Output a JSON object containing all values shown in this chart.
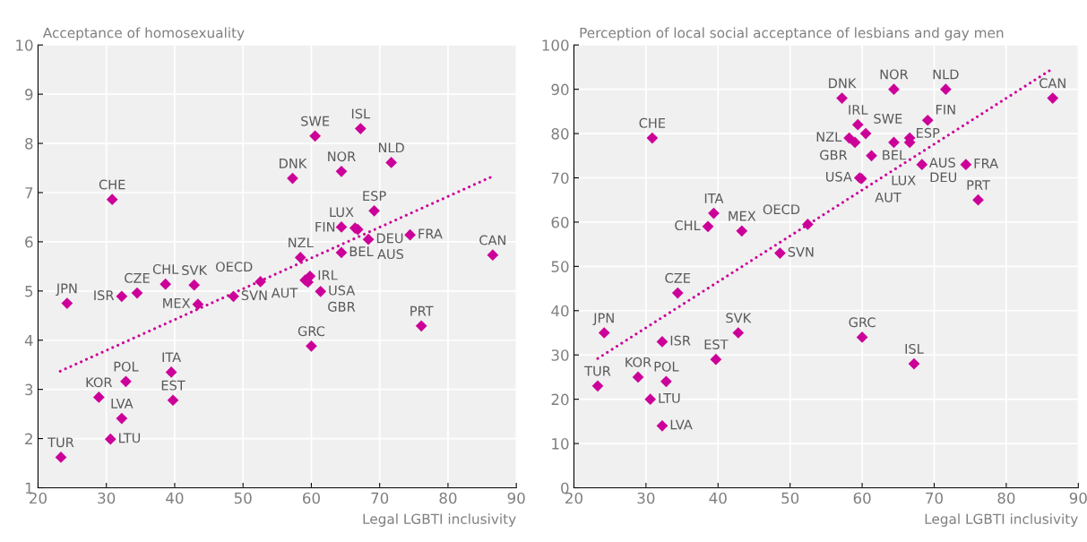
{
  "chart_data": [
    {
      "type": "scatter",
      "ylabel": "Acceptance of homosexuality",
      "xlabel": "Legal LGBTI inclusivity",
      "xlim": [
        20,
        90
      ],
      "xticks": [
        20,
        30,
        40,
        50,
        60,
        70,
        80,
        90
      ],
      "ylim": [
        1,
        10
      ],
      "yticks": [
        1,
        2,
        3,
        4,
        5,
        6,
        7,
        8,
        9,
        10
      ],
      "grid": true,
      "series": [
        {
          "color": "#cc0099",
          "marker": "diamond",
          "x": [
            60.55,
            67.2,
            71.7,
            57.25,
            64.4,
            30.85,
            69.2,
            64.4,
            66.4,
            66.8,
            68.35,
            74.45,
            86.55,
            58.4,
            64.4,
            59.1,
            59.8,
            59.5,
            61.35,
            48.6,
            52.55,
            43.4,
            42.85,
            38.65,
            34.5,
            32.25,
            24.25,
            39.5,
            39.75,
            32.85,
            28.9,
            32.25,
            30.6,
            23.35,
            60.0,
            76.1
          ],
          "values": [
            8.15,
            8.3,
            7.61,
            7.29,
            7.43,
            6.86,
            6.63,
            6.3,
            6.28,
            6.25,
            6.05,
            6.14,
            5.73,
            5.68,
            5.78,
            5.22,
            5.3,
            5.18,
            4.99,
            4.89,
            5.19,
            4.73,
            5.12,
            5.14,
            4.96,
            4.89,
            4.75,
            3.35,
            2.78,
            3.16,
            2.84,
            2.41,
            1.99,
            1.62,
            3.88,
            4.29
          ]
        },
        {
          "type": "line",
          "color": "#cc0099",
          "line_style": "dotted",
          "x": [
            23.25,
            86.2
          ],
          "values": [
            3.37,
            7.31
          ]
        }
      ],
      "annotations": [
        {
          "text": "SWE",
          "x": 60.55,
          "y": 8.15
        },
        {
          "text": "ISL",
          "x": 67.2,
          "y": 8.3
        },
        {
          "text": "NLD",
          "x": 71.7,
          "y": 7.61
        },
        {
          "text": "DNK",
          "x": 57.25,
          "y": 7.29
        },
        {
          "text": "NOR",
          "x": 64.4,
          "y": 7.43
        },
        {
          "text": "CHE",
          "x": 30.85,
          "y": 6.86
        },
        {
          "text": "ESP",
          "x": 69.2,
          "y": 6.63
        },
        {
          "text": "LUX",
          "x": 64.4,
          "y": 6.3
        },
        {
          "text": "FIN",
          "x": 66.4,
          "y": 6.28
        },
        {
          "text": "AUS",
          "x": 66.8,
          "y": 6.25
        },
        {
          "text": "DEU",
          "x": 68.35,
          "y": 6.05
        },
        {
          "text": "FRA",
          "x": 74.45,
          "y": 6.14
        },
        {
          "text": "CAN",
          "x": 86.55,
          "y": 5.73
        },
        {
          "text": "NZL",
          "x": 58.4,
          "y": 5.68
        },
        {
          "text": "BEL",
          "x": 64.4,
          "y": 5.78
        },
        {
          "text": "AUT",
          "x": 59.1,
          "y": 5.22
        },
        {
          "text": "IRL",
          "x": 59.8,
          "y": 5.3
        },
        {
          "text": "GBR",
          "x": 59.5,
          "y": 5.18
        },
        {
          "text": "USA",
          "x": 61.35,
          "y": 4.99
        },
        {
          "text": "SVN",
          "x": 48.6,
          "y": 4.89
        },
        {
          "text": "OECD",
          "x": 52.55,
          "y": 5.19
        },
        {
          "text": "MEX",
          "x": 43.4,
          "y": 4.73
        },
        {
          "text": "SVK",
          "x": 42.85,
          "y": 5.12
        },
        {
          "text": "CHL",
          "x": 38.65,
          "y": 5.14
        },
        {
          "text": "CZE",
          "x": 34.5,
          "y": 4.96
        },
        {
          "text": "ISR",
          "x": 32.25,
          "y": 4.89
        },
        {
          "text": "JPN",
          "x": 24.25,
          "y": 4.75
        },
        {
          "text": "ITA",
          "x": 39.5,
          "y": 3.35
        },
        {
          "text": "EST",
          "x": 39.75,
          "y": 2.78
        },
        {
          "text": "POL",
          "x": 32.85,
          "y": 3.16
        },
        {
          "text": "KOR",
          "x": 28.9,
          "y": 2.84
        },
        {
          "text": "LVA",
          "x": 32.25,
          "y": 2.41
        },
        {
          "text": "LTU",
          "x": 30.6,
          "y": 1.99
        },
        {
          "text": "TUR",
          "x": 23.35,
          "y": 1.62
        },
        {
          "text": "GRC",
          "x": 60.0,
          "y": 3.88
        },
        {
          "text": "PRT",
          "x": 76.1,
          "y": 4.29
        }
      ]
    },
    {
      "type": "scatter",
      "ylabel": "Perception of local social acceptance of lesbians and gay men",
      "xlabel": "Legal LGBTI inclusivity",
      "xlim": [
        20,
        90
      ],
      "xticks": [
        20,
        30,
        40,
        50,
        60,
        70,
        80,
        90
      ],
      "ylim": [
        0,
        100
      ],
      "yticks": [
        0,
        10,
        20,
        30,
        40,
        50,
        60,
        70,
        80,
        90,
        100
      ],
      "grid": true,
      "series": [
        {
          "color": "#cc0099",
          "marker": "diamond",
          "x": [
            30.87,
            57.2,
            64.4,
            71.6,
            86.45,
            59.4,
            60.5,
            58.2,
            59.0,
            64.4,
            66.6,
            66.6,
            69.1,
            61.3,
            59.65,
            59.9,
            68.3,
            74.4,
            76.1,
            52.45,
            39.4,
            38.6,
            43.3,
            48.6,
            34.4,
            24.2,
            32.25,
            42.8,
            39.7,
            60.0,
            67.2,
            28.9,
            32.8,
            23.3,
            30.6,
            32.25
          ],
          "values": [
            79,
            88,
            90,
            90,
            88,
            82,
            80,
            79,
            78,
            78,
            79,
            78,
            83,
            75,
            70,
            69.8,
            73,
            73,
            65,
            59.5,
            62,
            59,
            58,
            53,
            44,
            35,
            33,
            35,
            29,
            34,
            28,
            25,
            24,
            23,
            20,
            14
          ]
        },
        {
          "type": "line",
          "color": "#cc0099",
          "line_style": "dotted",
          "x": [
            23.3,
            86.0
          ],
          "values": [
            29.2,
            94.2
          ]
        }
      ],
      "annotations": [
        {
          "text": "CHE",
          "x": 30.87,
          "y": 79
        },
        {
          "text": "DNK",
          "x": 57.2,
          "y": 88
        },
        {
          "text": "NOR",
          "x": 64.4,
          "y": 90
        },
        {
          "text": "NLD",
          "x": 71.6,
          "y": 90
        },
        {
          "text": "CAN",
          "x": 86.45,
          "y": 88
        },
        {
          "text": "IRL",
          "x": 59.4,
          "y": 82
        },
        {
          "text": "SWE",
          "x": 60.5,
          "y": 80
        },
        {
          "text": "NZL",
          "x": 58.2,
          "y": 79
        },
        {
          "text": "GBR",
          "x": 59.0,
          "y": 78
        },
        {
          "text": "BEL",
          "x": 64.4,
          "y": 78
        },
        {
          "text": "AUS",
          "x": 66.6,
          "y": 79
        },
        {
          "text": "FIN",
          "x": 66.6,
          "y": 78
        },
        {
          "text": "ESP",
          "x": 69.1,
          "y": 83
        },
        {
          "text": "LUX",
          "x": 61.3,
          "y": 75
        },
        {
          "text": "USA",
          "x": 59.65,
          "y": 70
        },
        {
          "text": "AUT",
          "x": 59.9,
          "y": 69.8
        },
        {
          "text": "DEU",
          "x": 68.3,
          "y": 73
        },
        {
          "text": "FRA",
          "x": 74.4,
          "y": 73
        },
        {
          "text": "PRT",
          "x": 76.1,
          "y": 65
        },
        {
          "text": "OECD",
          "x": 52.45,
          "y": 59.5
        },
        {
          "text": "ITA",
          "x": 39.4,
          "y": 62
        },
        {
          "text": "CHL",
          "x": 38.6,
          "y": 59
        },
        {
          "text": "MEX",
          "x": 43.3,
          "y": 58
        },
        {
          "text": "SVN",
          "x": 48.6,
          "y": 53
        },
        {
          "text": "CZE",
          "x": 34.4,
          "y": 44
        },
        {
          "text": "JPN",
          "x": 24.2,
          "y": 35
        },
        {
          "text": "ISR",
          "x": 32.25,
          "y": 33
        },
        {
          "text": "SVK",
          "x": 42.8,
          "y": 35
        },
        {
          "text": "EST",
          "x": 39.7,
          "y": 29
        },
        {
          "text": "GRC",
          "x": 60.0,
          "y": 34
        },
        {
          "text": "ISL",
          "x": 67.2,
          "y": 28
        },
        {
          "text": "KOR",
          "x": 28.9,
          "y": 25
        },
        {
          "text": "POL",
          "x": 32.8,
          "y": 24
        },
        {
          "text": "TUR",
          "x": 23.3,
          "y": 23
        },
        {
          "text": "LTU",
          "x": 30.6,
          "y": 20
        },
        {
          "text": "LVA",
          "x": 32.25,
          "y": 14
        }
      ]
    }
  ]
}
